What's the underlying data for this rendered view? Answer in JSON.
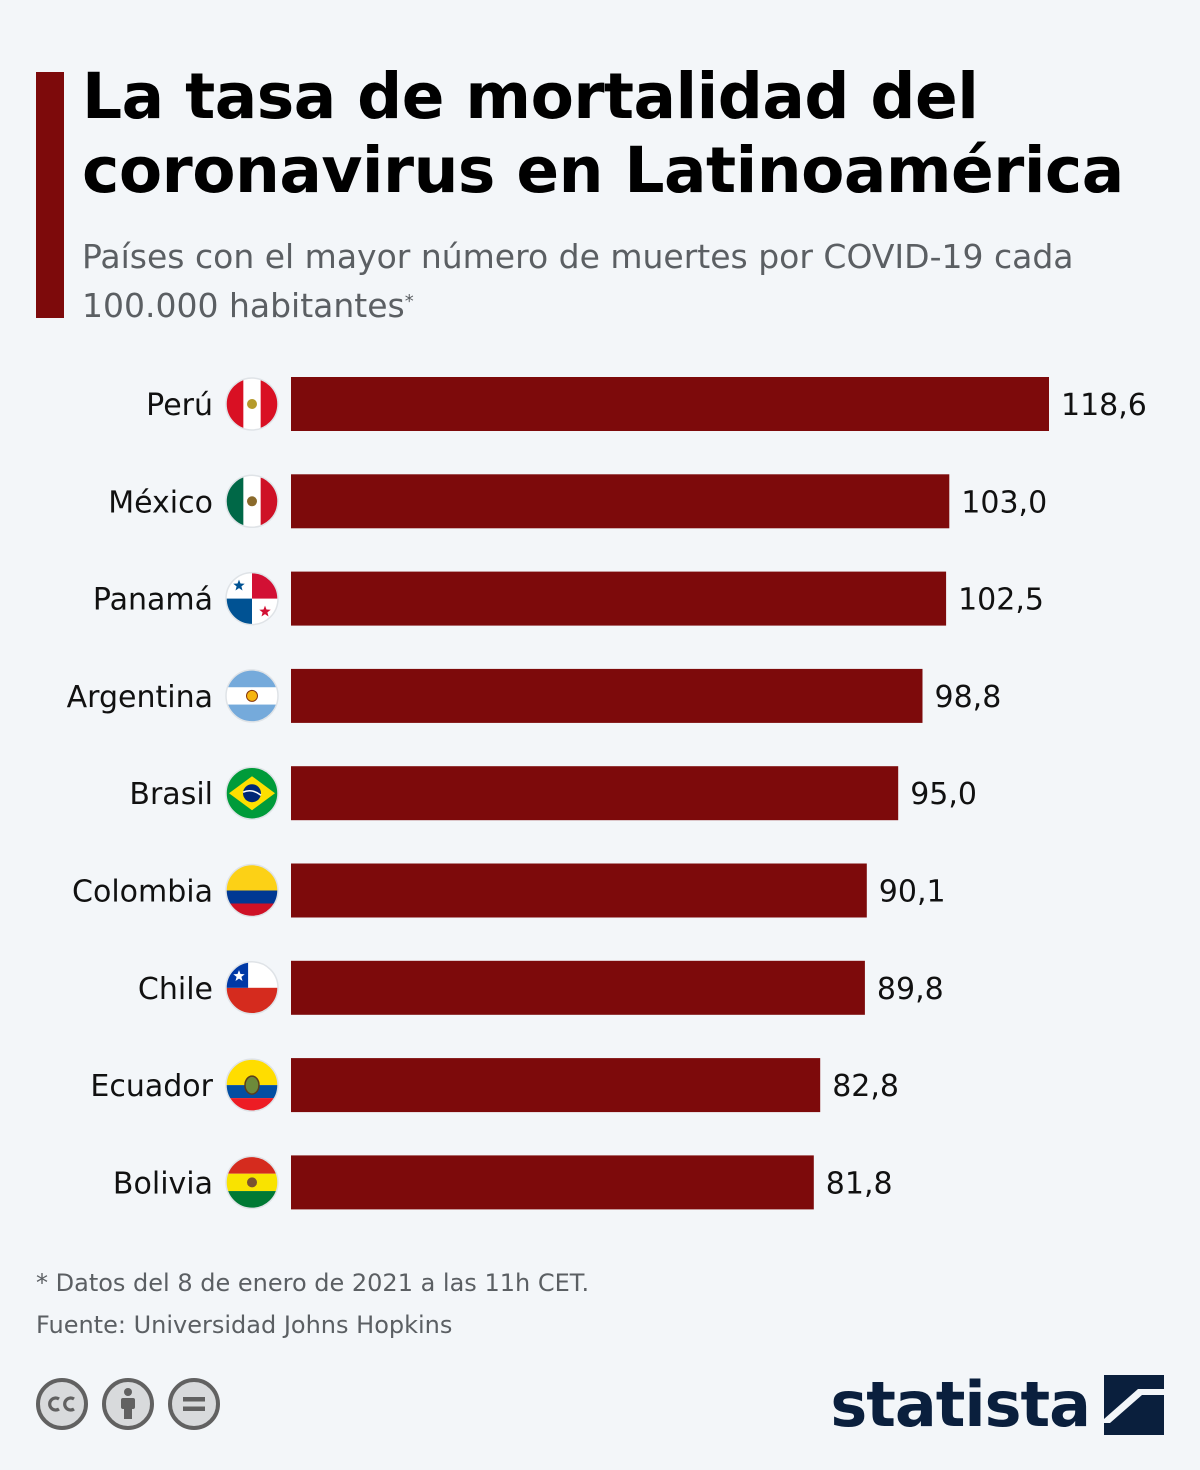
{
  "header": {
    "title": "La tasa de mortalidad del coronavirus en Latinoamérica",
    "subtitle": "Países con el mayor número de muertes por COVID-19 cada 100.000 habitantes",
    "subtitle_marker": "*"
  },
  "chart_data": {
    "type": "bar",
    "orientation": "horizontal",
    "title": "La tasa de mortalidad del coronavirus en Latinoamérica",
    "subtitle": "Países con el mayor número de muertes por COVID-19 cada 100.000 habitantes",
    "categories": [
      "Perú",
      "México",
      "Panamá",
      "Argentina",
      "Brasil",
      "Colombia",
      "Chile",
      "Ecuador",
      "Bolivia"
    ],
    "values": [
      118.6,
      103.0,
      102.5,
      98.8,
      95.0,
      90.1,
      89.8,
      82.8,
      81.8
    ],
    "value_labels": [
      "118,6",
      "103,0",
      "102,5",
      "98,8",
      "95,0",
      "90,1",
      "89,8",
      "82,8",
      "81,8"
    ],
    "flag_icons": [
      "peru-flag-icon",
      "mexico-flag-icon",
      "panama-flag-icon",
      "argentina-flag-icon",
      "brazil-flag-icon",
      "colombia-flag-icon",
      "chile-flag-icon",
      "ecuador-flag-icon",
      "bolivia-flag-icon"
    ],
    "xlim": [
      0,
      118.6
    ],
    "grid": false,
    "legend": "none",
    "bar_color": "#7d0a0b"
  },
  "footer": {
    "note": "* Datos del 8 de enero de 2021 a las 11h CET.",
    "source": "Fuente: Universidad Johns Hopkins",
    "license_icons": [
      "cc-icon",
      "attribution-icon",
      "no-derivatives-icon"
    ],
    "brand": "statista"
  },
  "colors": {
    "accent": "#7d0a0b",
    "background": "#f3f6f9",
    "brand": "#0a1f3d"
  }
}
